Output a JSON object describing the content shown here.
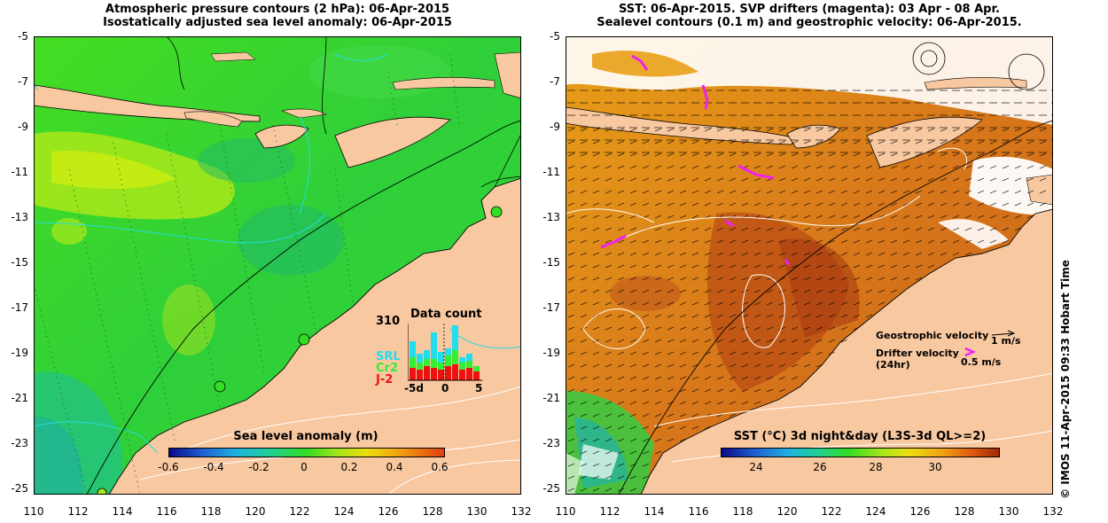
{
  "left_panel": {
    "title_line1": "Atmospheric pressure contours (2 hPa): 06-Apr-2015",
    "title_line2": "Isostatically adjusted sea level anomaly: 06-Apr-2015",
    "colorbar": {
      "title": "Sea level anomaly (m)",
      "ticks": [
        "-0.6",
        "-0.4",
        "-0.2",
        "0",
        "0.2",
        "0.4",
        "0.6"
      ]
    },
    "inset": {
      "title": "Data count",
      "max_label": "310",
      "satellites": [
        {
          "name": "SRL",
          "color": "#22ddee"
        },
        {
          "name": "Cr2",
          "color": "#33ee33"
        },
        {
          "name": "J-2",
          "color": "#ee1111"
        }
      ],
      "x_ticks": [
        "-5d",
        "0",
        "5"
      ]
    }
  },
  "right_panel": {
    "title_line1": "SST: 06-Apr-2015. SVP drifters (magenta): 03 Apr - 08 Apr.",
    "title_line2": "Sealevel contours (0.1 m) and geostrophic velocity: 06-Apr-2015.",
    "colorbar": {
      "title": "SST (°C) 3d night&day (L3S-3d QL>=2)",
      "ticks": [
        "24",
        "26",
        "28",
        "30"
      ]
    },
    "legend": {
      "geostrophic_label": "Geostrophic velocity",
      "geostrophic_scale": "1 m/s",
      "drifter_label_line1": "Drifter velocity",
      "drifter_label_line2": "(24hr)",
      "drifter_scale": "0.5 m/s",
      "drifter_color": "#ee22ee"
    }
  },
  "y_axis_labels": [
    "-5",
    "-7",
    "-9",
    "-11",
    "-13",
    "-15",
    "-17",
    "-19",
    "-21",
    "-23",
    "-25"
  ],
  "x_axis_labels": [
    "110",
    "112",
    "114",
    "116",
    "118",
    "120",
    "122",
    "124",
    "126",
    "128",
    "130",
    "132"
  ],
  "credit": "© IMOS 11-Apr-2015 09:33 Hobart Time",
  "colors": {
    "land": "#f8c8a0",
    "sla_green": "#33dd22",
    "sst_orange": "#e08a18",
    "drifter": "#ee22ee"
  }
}
